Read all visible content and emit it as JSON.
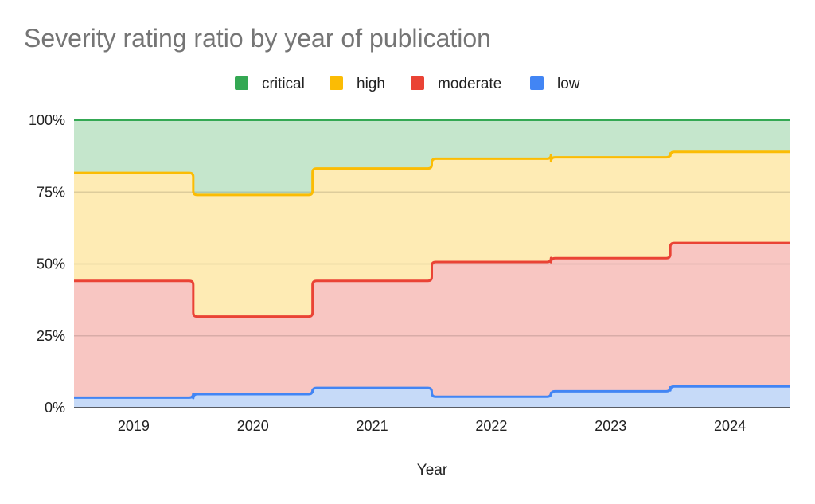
{
  "chart_data": {
    "type": "area",
    "stacked": "percent",
    "step": true,
    "title": "Severity rating ratio by year of publication",
    "xlabel": "Year",
    "ylabel": "",
    "categories": [
      "2019",
      "2020",
      "2021",
      "2022",
      "2023",
      "2024"
    ],
    "ylim": [
      0,
      1
    ],
    "yticks": [
      "0%",
      "25%",
      "50%",
      "75%",
      "100%"
    ],
    "grid": true,
    "legend_position": "top",
    "series": [
      {
        "name": "critical",
        "color": "#34a853",
        "fill": "#c5e6cc",
        "cumulative": [
          1.0,
          1.0,
          1.0,
          1.0,
          1.0,
          1.0
        ]
      },
      {
        "name": "high",
        "color": "#fbbc04",
        "fill": "#feebb4",
        "cumulative": [
          0.817,
          0.74,
          0.832,
          0.866,
          0.871,
          0.89
        ]
      },
      {
        "name": "moderate",
        "color": "#ea4335",
        "fill": "#f8c6c2",
        "cumulative": [
          0.441,
          0.317,
          0.441,
          0.507,
          0.52,
          0.573
        ]
      },
      {
        "name": "low",
        "color": "#4285f4",
        "fill": "#c6daf8",
        "cumulative": [
          0.035,
          0.047,
          0.069,
          0.038,
          0.057,
          0.074
        ]
      }
    ]
  }
}
